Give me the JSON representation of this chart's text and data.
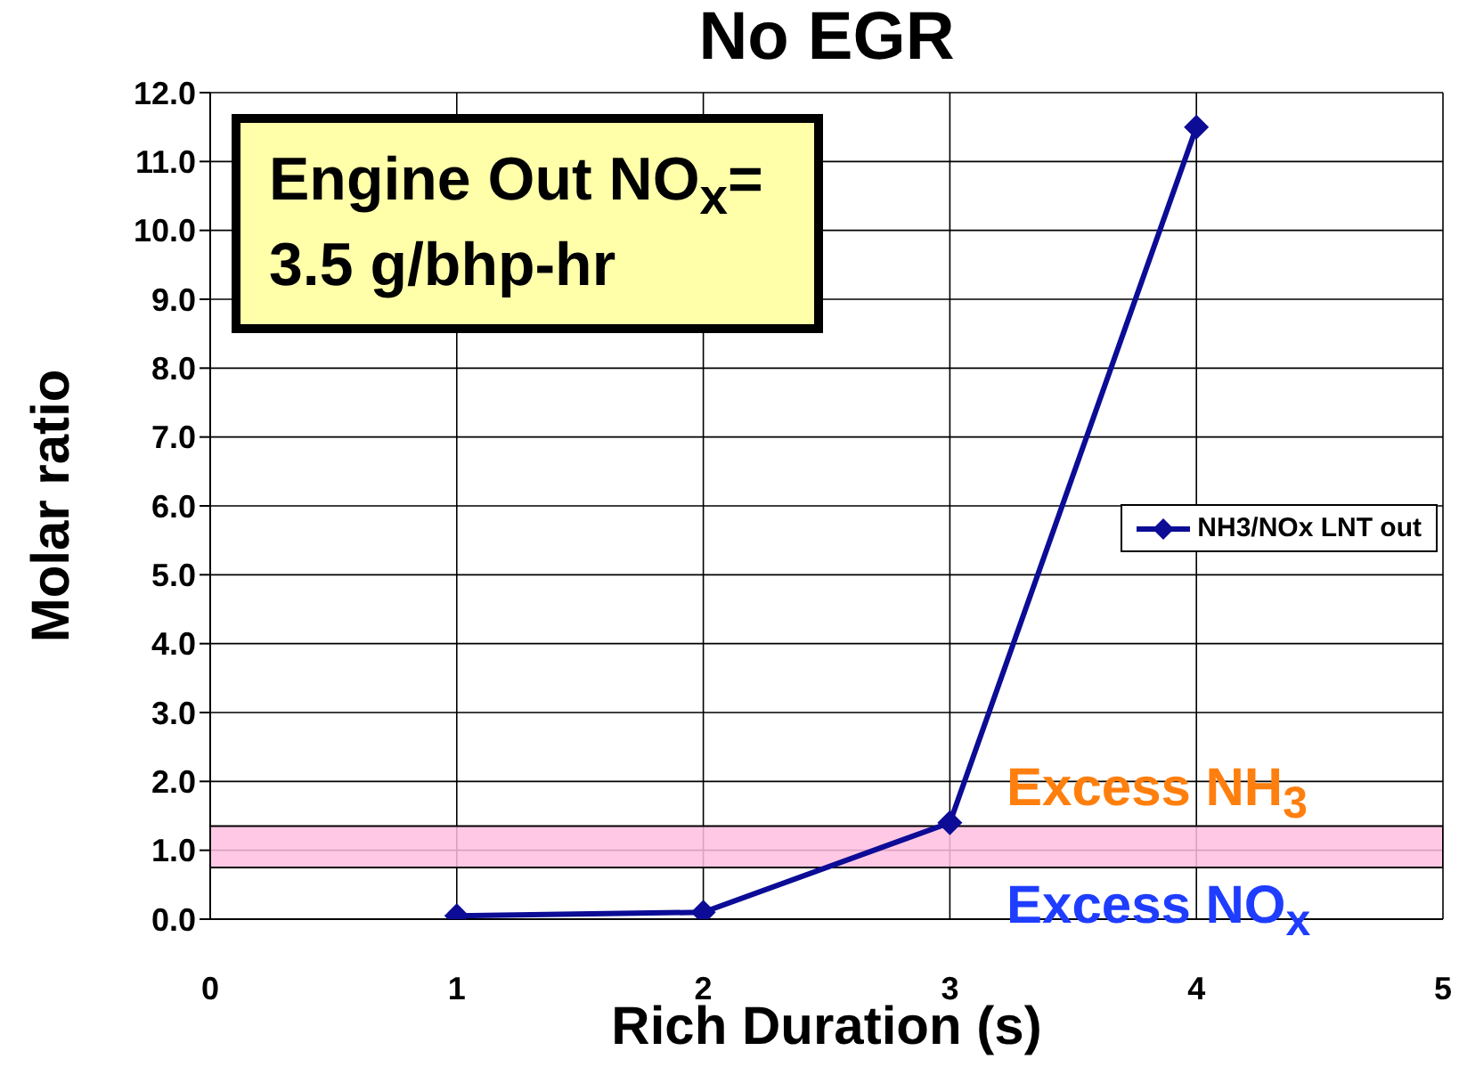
{
  "chart_data": {
    "type": "line",
    "title": "No EGR",
    "xlabel": "Rich Duration (s)",
    "ylabel": "Molar ratio",
    "annotations": [
      "Engine Out NO$_{x}$= 3.5 g/bhp-hr",
      "Excess NH$_{3}$",
      "Excess NO$_{x}$"
    ],
    "x": [
      1,
      2,
      3,
      4
    ],
    "series": [
      {
        "name": "NH3/NOx LNT out",
        "color": "#0c0c96",
        "values": [
          0.05,
          0.1,
          1.4,
          11.5
        ]
      }
    ],
    "xlim": [
      0,
      5
    ],
    "xticks": [
      0,
      1,
      2,
      3,
      4,
      5
    ],
    "ylim": [
      0,
      12
    ],
    "yticks": [
      {
        "value": 0,
        "label": "0.0"
      },
      {
        "value": 1,
        "label": "1.0"
      },
      {
        "value": 2,
        "label": "2.0"
      },
      {
        "value": 3,
        "label": "3.0"
      },
      {
        "value": 4,
        "label": "4.0"
      },
      {
        "value": 5,
        "label": "5.0"
      },
      {
        "value": 6,
        "label": "6.0"
      },
      {
        "value": 7,
        "label": "7.0"
      },
      {
        "value": 8,
        "label": "8.0"
      },
      {
        "value": 9,
        "label": "9.0"
      },
      {
        "value": 10,
        "label": "10.0"
      },
      {
        "value": 11,
        "label": "11.0"
      },
      {
        "value": 12,
        "label": "12.0"
      }
    ],
    "bands": [
      {
        "axis": "y",
        "from": 0.75,
        "to": 1.35,
        "color": "#ffbfe0"
      }
    ],
    "grid": true,
    "legend": "right",
    "marker": "diamond",
    "line_style": "solid"
  }
}
